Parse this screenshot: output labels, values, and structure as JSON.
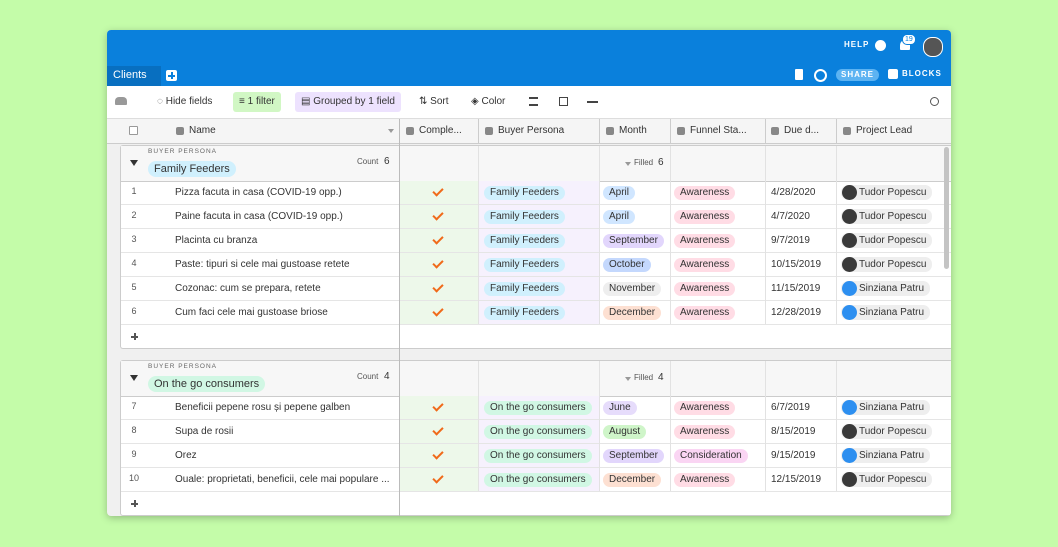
{
  "header": {
    "workspace": "Clients",
    "help": "HELP",
    "notifications": "19",
    "share": "SHARE",
    "blocks": "BLOCKS"
  },
  "toolbar": {
    "hide_fields": "Hide fields",
    "filter": "1 filter",
    "group": "Grouped by 1 field",
    "sort": "Sort",
    "color": "Color"
  },
  "columns": [
    "Name",
    "Comple...",
    "Buyer Persona",
    "Month",
    "Funnel Sta...",
    "Due d...",
    "Project Lead"
  ],
  "groups": [
    {
      "label": "BUYER PERSONA",
      "name": "Family Feeders",
      "color": "#d0f0fd",
      "count_label": "Count",
      "count": 6,
      "filled_label": "Filled",
      "filled": 6,
      "rows": [
        {
          "n": 1,
          "name": "Pizza facuta in casa (COVID-19 opp.)",
          "persona": "Family Feeders",
          "month": "April",
          "month_color": "#d0e6ff",
          "funnel": "Awareness",
          "funnel_color": "#ffdce5",
          "due": "4/28/2020",
          "lead": "Tudor Popescu",
          "lead_color": "#3a3a3a"
        },
        {
          "n": 2,
          "name": "Paine facuta in casa (COVID-19 opp.)",
          "persona": "Family Feeders",
          "month": "April",
          "month_color": "#d0e6ff",
          "funnel": "Awareness",
          "funnel_color": "#ffdce5",
          "due": "4/7/2020",
          "lead": "Tudor Popescu",
          "lead_color": "#3a3a3a"
        },
        {
          "n": 3,
          "name": "Placinta cu branza",
          "persona": "Family Feeders",
          "month": "September",
          "month_color": "#e2d6fc",
          "funnel": "Awareness",
          "funnel_color": "#ffdce5",
          "due": "9/7/2019",
          "lead": "Tudor Popescu",
          "lead_color": "#3a3a3a"
        },
        {
          "n": 4,
          "name": "Paste: tipuri si cele mai gustoase retete",
          "persona": "Family Feeders",
          "month": "October",
          "month_color": "#c4d8fd",
          "funnel": "Awareness",
          "funnel_color": "#ffdce5",
          "due": "10/15/2019",
          "lead": "Tudor Popescu",
          "lead_color": "#3a3a3a"
        },
        {
          "n": 5,
          "name": "Cozonac: cum se prepara, retete",
          "persona": "Family Feeders",
          "month": "November",
          "month_color": "#eeeeee",
          "funnel": "Awareness",
          "funnel_color": "#ffdce5",
          "due": "11/15/2019",
          "lead": "Sinziana Patru",
          "lead_color": "#2d8ff0"
        },
        {
          "n": 6,
          "name": "Cum faci cele mai gustoase briose",
          "persona": "Family Feeders",
          "month": "December",
          "month_color": "#fde0d2",
          "funnel": "Awareness",
          "funnel_color": "#ffdce5",
          "due": "12/28/2019",
          "lead": "Sinziana Patru",
          "lead_color": "#2d8ff0"
        }
      ]
    },
    {
      "label": "BUYER PERSONA",
      "name": "On the go consumers",
      "color": "#d1f7e4",
      "count_label": "Count",
      "count": 4,
      "filled_label": "Filled",
      "filled": 4,
      "rows": [
        {
          "n": 7,
          "name": "Beneficii pepene rosu și pepene galben",
          "persona": "On the go consumers",
          "month": "June",
          "month_color": "#e6dcfb",
          "funnel": "Awareness",
          "funnel_color": "#ffdce5",
          "due": "6/7/2019",
          "lead": "Sinziana Patru",
          "lead_color": "#2d8ff0"
        },
        {
          "n": 8,
          "name": "Supa de rosii",
          "persona": "On the go consumers",
          "month": "August",
          "month_color": "#cff5c9",
          "funnel": "Awareness",
          "funnel_color": "#ffdce5",
          "due": "8/15/2019",
          "lead": "Tudor Popescu",
          "lead_color": "#3a3a3a"
        },
        {
          "n": 9,
          "name": "Orez",
          "persona": "On the go consumers",
          "month": "September",
          "month_color": "#e2d6fc",
          "funnel": "Consideration",
          "funnel_color": "#fad5f3",
          "due": "9/15/2019",
          "lead": "Sinziana Patru",
          "lead_color": "#2d8ff0"
        },
        {
          "n": 10,
          "name": "Ouale: proprietati, beneficii, cele mai populare ...",
          "persona": "On the go consumers",
          "month": "December",
          "month_color": "#fde0d2",
          "funnel": "Awareness",
          "funnel_color": "#ffdce5",
          "due": "12/15/2019",
          "lead": "Tudor Popescu",
          "lead_color": "#3a3a3a"
        }
      ]
    }
  ]
}
